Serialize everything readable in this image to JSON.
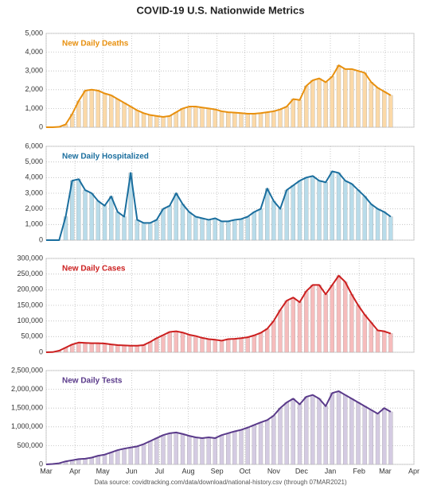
{
  "title": "COVID-19 U.S. Nationwide Metrics",
  "source": "Data source: covidtracking.com/data/download/national-history.csv (through 07MAR2021)",
  "chart_data": [
    {
      "type": "bar-line",
      "title": "New Daily Deaths",
      "color": "#e8900e",
      "bar_color": "#fbd9a8",
      "grid": true,
      "x": [
        0,
        7,
        14,
        21,
        28,
        35,
        42,
        49,
        56,
        63,
        70,
        77,
        84,
        91,
        98,
        105,
        112,
        119,
        126,
        133,
        140,
        147,
        154,
        161,
        168,
        175,
        182,
        189,
        196,
        203,
        210,
        217,
        224,
        231,
        238,
        245,
        252,
        259,
        266,
        273,
        280,
        287,
        294,
        301,
        308,
        315,
        322,
        329,
        336,
        343,
        350,
        357,
        364,
        371
      ],
      "values": [
        0,
        0,
        20,
        150,
        700,
        1400,
        1950,
        2000,
        1950,
        1800,
        1700,
        1500,
        1300,
        1100,
        900,
        750,
        650,
        600,
        550,
        600,
        800,
        1000,
        1100,
        1100,
        1050,
        1000,
        950,
        850,
        800,
        780,
        750,
        720,
        720,
        750,
        800,
        850,
        950,
        1100,
        1500,
        1450,
        2200,
        2500,
        2600,
        2400,
        2700,
        3300,
        3100,
        3100,
        3000,
        2900,
        2400,
        2100,
        1900,
        1700
      ],
      "xlim": [
        0,
        396
      ],
      "xticks": [
        0,
        31,
        61,
        92,
        122,
        153,
        184,
        214,
        245,
        275,
        306,
        337,
        365,
        396
      ],
      "ylim": [
        0,
        5000
      ],
      "yticks": [
        0,
        {
          "value": 1000,
          "label": "1,000"
        },
        {
          "value": 2000,
          "label": "2,000"
        },
        {
          "value": 3000,
          "label": "3,000"
        },
        {
          "value": 4000,
          "label": "4,000"
        },
        {
          "value": 5000,
          "label": "5,000"
        }
      ]
    },
    {
      "type": "bar-line",
      "title": "New Daily Hospitalized",
      "color": "#1a6e9e",
      "bar_color": "#b9dcea",
      "grid": true,
      "x": [
        0,
        7,
        14,
        21,
        28,
        35,
        42,
        49,
        56,
        63,
        70,
        77,
        84,
        91,
        98,
        105,
        112,
        119,
        126,
        133,
        140,
        147,
        154,
        161,
        168,
        175,
        182,
        189,
        196,
        203,
        210,
        217,
        224,
        231,
        238,
        245,
        252,
        259,
        266,
        273,
        280,
        287,
        294,
        301,
        308,
        315,
        322,
        329,
        336,
        343,
        350,
        357,
        364,
        371
      ],
      "values": [
        0,
        0,
        0,
        1500,
        3800,
        3900,
        3200,
        3000,
        2500,
        2200,
        2800,
        1800,
        1500,
        4300,
        1300,
        1100,
        1100,
        1300,
        2000,
        2200,
        3000,
        2300,
        1800,
        1500,
        1400,
        1300,
        1400,
        1200,
        1200,
        1300,
        1350,
        1500,
        1800,
        2000,
        3300,
        2500,
        2000,
        3200,
        3500,
        3800,
        4000,
        4100,
        3800,
        3700,
        4400,
        4300,
        3800,
        3600,
        3200,
        2800,
        2300,
        2000,
        1800,
        1500
      ],
      "xlim": [
        0,
        396
      ],
      "xticks": [
        0,
        31,
        61,
        92,
        122,
        153,
        184,
        214,
        245,
        275,
        306,
        337,
        365,
        396
      ],
      "ylim": [
        0,
        6000
      ],
      "yticks": [
        0,
        {
          "value": 1000,
          "label": "1,000"
        },
        {
          "value": 2000,
          "label": "2,000"
        },
        {
          "value": 3000,
          "label": "3,000"
        },
        {
          "value": 4000,
          "label": "4,000"
        },
        {
          "value": 5000,
          "label": "5,000"
        },
        {
          "value": 6000,
          "label": "6,000"
        }
      ]
    },
    {
      "type": "bar-line",
      "title": "New Daily Cases",
      "color": "#cc1f1f",
      "bar_color": "#f6bcbc",
      "grid": true,
      "x": [
        0,
        7,
        14,
        21,
        28,
        35,
        42,
        49,
        56,
        63,
        70,
        77,
        84,
        91,
        98,
        105,
        112,
        119,
        126,
        133,
        140,
        147,
        154,
        161,
        168,
        175,
        182,
        189,
        196,
        203,
        210,
        217,
        224,
        231,
        238,
        245,
        252,
        259,
        266,
        273,
        280,
        287,
        294,
        301,
        308,
        315,
        322,
        329,
        336,
        343,
        350,
        357,
        364,
        371
      ],
      "values": [
        0,
        500,
        5000,
        15000,
        25000,
        31000,
        30000,
        29000,
        29000,
        28000,
        25000,
        23000,
        22000,
        21000,
        21000,
        23000,
        33000,
        45000,
        55000,
        65000,
        67000,
        63000,
        56000,
        52000,
        46000,
        42000,
        40000,
        37000,
        42000,
        43000,
        45000,
        48000,
        54000,
        62000,
        75000,
        100000,
        135000,
        165000,
        175000,
        160000,
        195000,
        215000,
        215000,
        185000,
        215000,
        245000,
        225000,
        185000,
        150000,
        120000,
        95000,
        70000,
        67000,
        60000
      ],
      "xlim": [
        0,
        396
      ],
      "xticks": [
        0,
        31,
        61,
        92,
        122,
        153,
        184,
        214,
        245,
        275,
        306,
        337,
        365,
        396
      ],
      "ylim": [
        0,
        300000
      ],
      "yticks": [
        0,
        {
          "value": 50000,
          "label": "50,000"
        },
        {
          "value": 100000,
          "label": "100,000"
        },
        {
          "value": 150000,
          "label": "150,000"
        },
        {
          "value": 200000,
          "label": "200,000"
        },
        {
          "value": 250000,
          "label": "250,000"
        },
        {
          "value": 300000,
          "label": "300,000"
        }
      ]
    },
    {
      "type": "bar-line",
      "title": "New Daily Tests",
      "color": "#5a3a8a",
      "bar_color": "#d4cbe2",
      "grid": true,
      "x": [
        0,
        7,
        14,
        21,
        28,
        35,
        42,
        49,
        56,
        63,
        70,
        77,
        84,
        91,
        98,
        105,
        112,
        119,
        126,
        133,
        140,
        147,
        154,
        161,
        168,
        175,
        182,
        189,
        196,
        203,
        210,
        217,
        224,
        231,
        238,
        245,
        252,
        259,
        266,
        273,
        280,
        287,
        294,
        301,
        308,
        315,
        322,
        329,
        336,
        343,
        350,
        357,
        364,
        371
      ],
      "values": [
        0,
        10000,
        30000,
        80000,
        110000,
        140000,
        150000,
        180000,
        230000,
        260000,
        320000,
        380000,
        420000,
        450000,
        480000,
        540000,
        620000,
        700000,
        780000,
        830000,
        850000,
        810000,
        760000,
        720000,
        700000,
        720000,
        700000,
        780000,
        830000,
        880000,
        920000,
        980000,
        1050000,
        1120000,
        1180000,
        1300000,
        1500000,
        1650000,
        1750000,
        1600000,
        1800000,
        1850000,
        1750000,
        1550000,
        1900000,
        1950000,
        1850000,
        1750000,
        1650000,
        1550000,
        1450000,
        1350000,
        1500000,
        1400000
      ],
      "xlim": [
        0,
        396
      ],
      "xticks": [
        {
          "value": 0,
          "label": "Mar"
        },
        {
          "value": 31,
          "label": "Apr"
        },
        {
          "value": 61,
          "label": "May"
        },
        {
          "value": 92,
          "label": "Jun"
        },
        {
          "value": 122,
          "label": "Jul"
        },
        {
          "value": 153,
          "label": "Aug"
        },
        {
          "value": 184,
          "label": "Sep"
        },
        {
          "value": 214,
          "label": "Oct"
        },
        {
          "value": 245,
          "label": "Nov"
        },
        {
          "value": 275,
          "label": "Dec"
        },
        {
          "value": 306,
          "label": "Jan"
        },
        {
          "value": 337,
          "label": "Feb"
        },
        {
          "value": 365,
          "label": "Mar"
        },
        {
          "value": 396,
          "label": "Apr"
        }
      ],
      "ylim": [
        0,
        2500000
      ],
      "yticks": [
        0,
        {
          "value": 500000,
          "label": "500,000"
        },
        {
          "value": 1000000,
          "label": "1,000,000"
        },
        {
          "value": 1500000,
          "label": "1,500,000"
        },
        {
          "value": 2000000,
          "label": "2,000,000"
        },
        {
          "value": 2500000,
          "label": "2,500,000"
        }
      ]
    }
  ]
}
